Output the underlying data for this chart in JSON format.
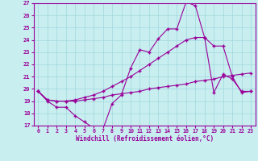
{
  "title": "",
  "xlabel": "Windchill (Refroidissement éolien,°C)",
  "background_color": "#c8eef0",
  "line_color": "#990099",
  "xlim": [
    -0.5,
    23.5
  ],
  "ylim": [
    17,
    27
  ],
  "yticks": [
    17,
    18,
    19,
    20,
    21,
    22,
    23,
    24,
    25,
    26,
    27
  ],
  "xticks": [
    0,
    1,
    2,
    3,
    4,
    5,
    6,
    7,
    8,
    9,
    10,
    11,
    12,
    13,
    14,
    15,
    16,
    17,
    18,
    19,
    20,
    21,
    22,
    23
  ],
  "line1_x": [
    0,
    1,
    2,
    3,
    4,
    5,
    6,
    7,
    8,
    9,
    10,
    11,
    12,
    13,
    14,
    15,
    16,
    17,
    18,
    19,
    20,
    21,
    22,
    23
  ],
  "line1_y": [
    19.8,
    19.0,
    18.5,
    18.5,
    17.8,
    17.3,
    16.8,
    16.7,
    18.8,
    19.5,
    21.7,
    23.2,
    23.0,
    24.1,
    24.9,
    24.9,
    27.1,
    26.8,
    24.2,
    19.7,
    21.2,
    20.8,
    19.8,
    19.8
  ],
  "line2_x": [
    0,
    1,
    2,
    3,
    4,
    5,
    6,
    7,
    8,
    9,
    10,
    11,
    12,
    13,
    14,
    15,
    16,
    17,
    18,
    19,
    20,
    21,
    22,
    23
  ],
  "line2_y": [
    19.8,
    19.1,
    19.0,
    19.0,
    19.0,
    19.1,
    19.2,
    19.3,
    19.5,
    19.6,
    19.7,
    19.8,
    20.0,
    20.1,
    20.2,
    20.3,
    20.4,
    20.6,
    20.7,
    20.8,
    21.0,
    21.1,
    21.2,
    21.3
  ],
  "line3_x": [
    0,
    1,
    2,
    3,
    4,
    5,
    6,
    7,
    8,
    9,
    10,
    11,
    12,
    13,
    14,
    15,
    16,
    17,
    18,
    19,
    20,
    21,
    22,
    23
  ],
  "line3_y": [
    19.8,
    19.1,
    19.0,
    19.0,
    19.1,
    19.3,
    19.5,
    19.8,
    20.2,
    20.6,
    21.0,
    21.5,
    22.0,
    22.5,
    23.0,
    23.5,
    24.0,
    24.2,
    24.2,
    23.5,
    23.5,
    21.0,
    19.7,
    19.8
  ]
}
